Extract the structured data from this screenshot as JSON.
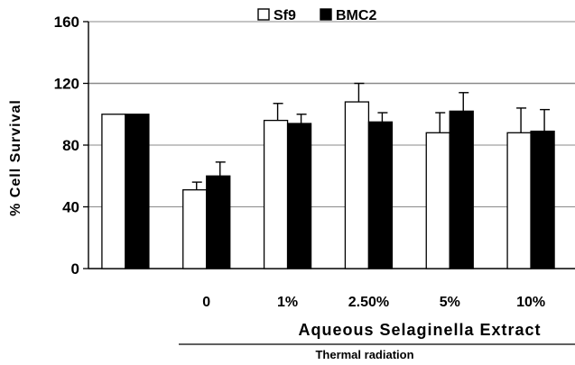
{
  "chart_data": {
    "type": "bar",
    "categories": [
      "",
      "0",
      "1%",
      "2.50%",
      "5%",
      "10%"
    ],
    "series": [
      {
        "name": "Sf9",
        "values": [
          100,
          51,
          96,
          108,
          88,
          88
        ],
        "errors": [
          0,
          5,
          11,
          12,
          13,
          16
        ],
        "color": "#ffffff"
      },
      {
        "name": "BMC2",
        "values": [
          100,
          60,
          94,
          95,
          102,
          89
        ],
        "errors": [
          0,
          9,
          6,
          6,
          12,
          14
        ],
        "color": "#000000"
      }
    ],
    "title": "",
    "ylabel": "% Cell Survival",
    "xlabel": "Aqueous Selaginella Extract",
    "xlabel2": "Thermal radiation",
    "ylim": [
      0,
      160
    ],
    "yticks": [
      0,
      40,
      80,
      120,
      160
    ],
    "grid": true,
    "legend_position": "top"
  }
}
